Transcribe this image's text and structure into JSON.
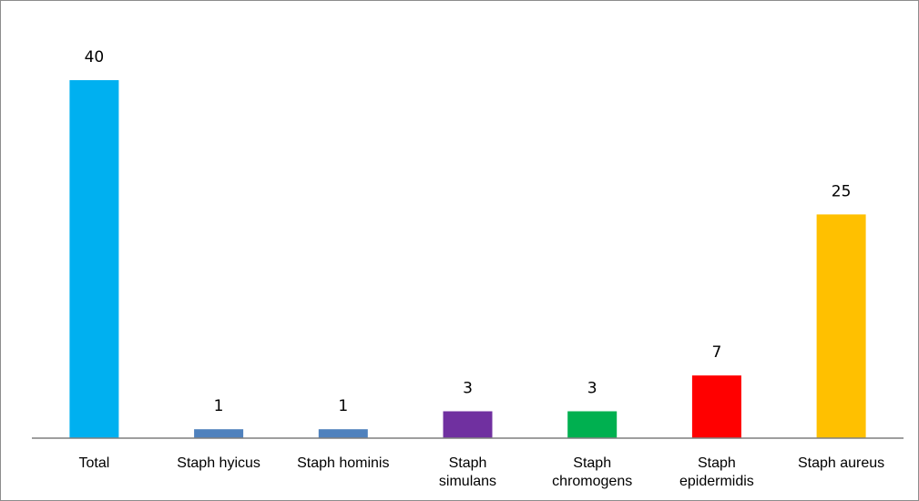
{
  "chart_data": {
    "type": "bar",
    "title": "",
    "xlabel": "",
    "ylabel": "",
    "categories": [
      [
        "Total"
      ],
      [
        "Staph hyicus"
      ],
      [
        "Staph hominis"
      ],
      [
        "Staph",
        "simulans"
      ],
      [
        "Staph",
        "chromogens"
      ],
      [
        "Staph",
        "epidermidis"
      ],
      [
        "Staph aureus"
      ]
    ],
    "values": [
      40,
      1,
      1,
      3,
      3,
      7,
      25
    ],
    "colors": [
      "#00b0f0",
      "#4f81bd",
      "#4f81bd",
      "#7030a0",
      "#00b050",
      "#ff0000",
      "#ffc000"
    ],
    "ylim": [
      0,
      40
    ],
    "grid": false,
    "legend": "none",
    "data_labels": true,
    "axis_color": "#7f7f7f"
  }
}
